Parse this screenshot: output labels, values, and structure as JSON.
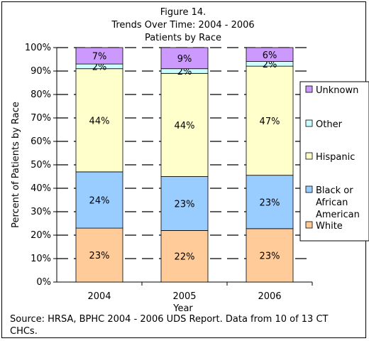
{
  "chart_data": {
    "type": "bar",
    "stacked": true,
    "title": [
      "Figure 14.",
      "Trends Over Time: 2004 - 2006",
      "Patients by Race"
    ],
    "xlabel": "Year",
    "ylabel": "Percent of Patients by Race",
    "ylim": [
      0,
      100
    ],
    "yticks": [
      "0%",
      "10%",
      "20%",
      "30%",
      "40%",
      "50%",
      "60%",
      "70%",
      "80%",
      "90%",
      "100%"
    ],
    "categories": [
      "2004",
      "2005",
      "2006"
    ],
    "grid": "dashed horizontal",
    "legend_position": "right",
    "series": [
      {
        "name": "White",
        "values": [
          23,
          22,
          23
        ],
        "labels": [
          "23%",
          "22%",
          "23%"
        ],
        "color": "#FFCC99"
      },
      {
        "name": "Black or African American",
        "values": [
          24,
          23,
          23
        ],
        "labels": [
          "24%",
          "23%",
          "23%"
        ],
        "color": "#99CCFF"
      },
      {
        "name": "Hispanic",
        "values": [
          44,
          44,
          47
        ],
        "labels": [
          "44%",
          "44%",
          "47%"
        ],
        "color": "#FFFFCC"
      },
      {
        "name": "Other",
        "values": [
          2,
          2,
          2
        ],
        "labels": [
          "2%",
          "2%",
          "2%"
        ],
        "color": "#CCFFFF"
      },
      {
        "name": "Unknown",
        "values": [
          7,
          9,
          6
        ],
        "labels": [
          "7%",
          "9%",
          "6%"
        ],
        "color": "#CC99FF"
      }
    ],
    "legend_order": [
      "Unknown",
      "Other",
      "Hispanic",
      "Black or African American",
      "White"
    ],
    "legend_lines": {
      "Unknown": [
        "Unknown"
      ],
      "Other": [
        "Other"
      ],
      "Hispanic": [
        "Hispanic"
      ],
      "Black or African American": [
        "Black or",
        "African",
        "American"
      ],
      "White": [
        "White"
      ]
    }
  },
  "source_note": "Source: HRSA, BPHC 2004 - 2006 UDS Report.  Data from 10 of 13 CT CHCs."
}
